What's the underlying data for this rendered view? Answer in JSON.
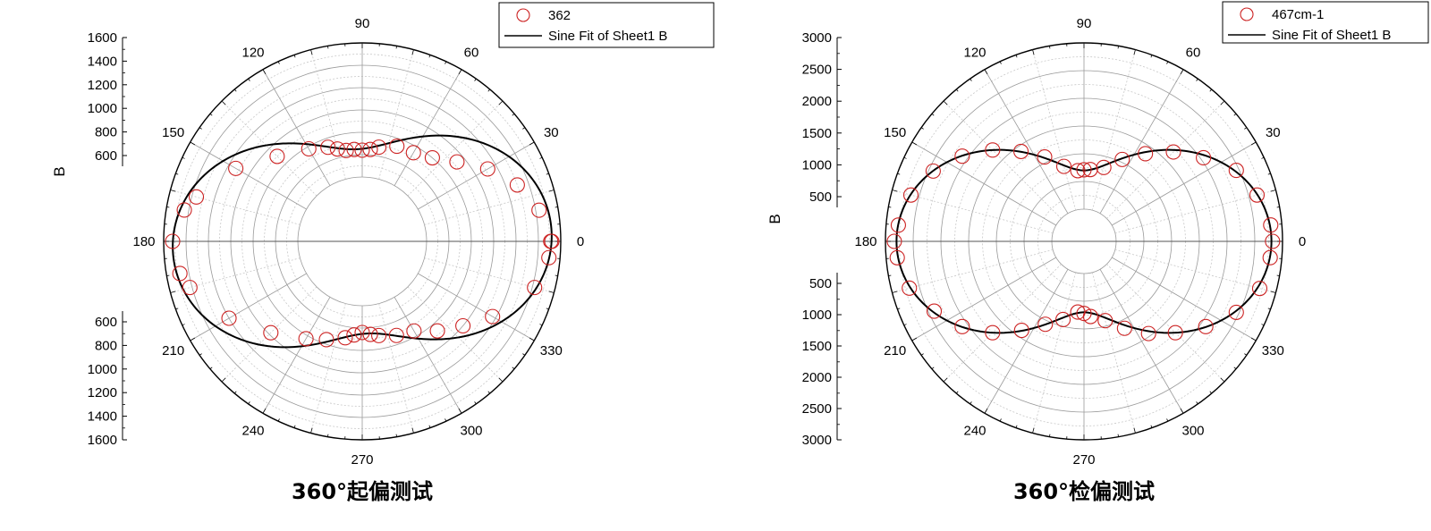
{
  "chart_data": [
    {
      "type": "scatter",
      "coordinate_system": "polar",
      "title": "",
      "caption": "360°起偏测试",
      "rlabel": "B",
      "rlim": [
        400,
        1600
      ],
      "r_ticks": [
        600,
        800,
        1000,
        1200,
        1400,
        1600
      ],
      "angle_ticks": [
        0,
        30,
        60,
        90,
        120,
        150,
        180,
        210,
        240,
        270,
        300,
        330
      ],
      "grid": true,
      "legend": {
        "position": "top-right",
        "entries": [
          "362",
          "Sine Fit of Sheet1 B"
        ]
      },
      "colors": {
        "points": "#cc2222",
        "fit": "#000000"
      },
      "series": [
        {
          "name": "362",
          "style": "open-circle",
          "theta": [
            0,
            0,
            10,
            20,
            30,
            40,
            50,
            60,
            70,
            80,
            85,
            90,
            95,
            100,
            105,
            110,
            120,
            135,
            150,
            165,
            170,
            180,
            190,
            195,
            210,
            225,
            240,
            250,
            260,
            265,
            270,
            275,
            280,
            290,
            300,
            310,
            320,
            330,
            345,
            355
          ],
          "r": [
            1520,
            1510,
            1430,
            1300,
            1120,
            930,
            800,
            740,
            730,
            680,
            650,
            640,
            650,
            650,
            680,
            720,
            780,
            900,
            1130,
            1360,
            1440,
            1520,
            1480,
            1420,
            1200,
            980,
            830,
            760,
            700,
            665,
            640,
            660,
            680,
            720,
            750,
            870,
            1000,
            1170,
            1420,
            1500
          ]
        },
        {
          "name": "Sine Fit of Sheet1 B",
          "style": "line",
          "model": "r = 1085 + 435*cos(2*(theta - 3))"
        }
      ]
    },
    {
      "type": "scatter",
      "coordinate_system": "polar",
      "title": "",
      "caption": "360°检偏测试",
      "rlabel": "B",
      "rlim": [
        0,
        3000
      ],
      "r_ticks": [
        500,
        1000,
        1500,
        2000,
        2500,
        3000
      ],
      "angle_ticks": [
        0,
        30,
        60,
        90,
        120,
        150,
        180,
        210,
        240,
        270,
        300,
        330
      ],
      "grid": true,
      "legend": {
        "position": "top-right",
        "entries": [
          "467cm-1",
          "Sine Fit of Sheet1 B"
        ]
      },
      "colors": {
        "points": "#cc2222",
        "fit": "#000000"
      },
      "series": [
        {
          "name": "467cm-1",
          "style": "open-circle",
          "theta": [
            0,
            5,
            15,
            25,
            35,
            45,
            55,
            65,
            75,
            85,
            90,
            95,
            105,
            115,
            125,
            135,
            145,
            155,
            165,
            175,
            180,
            185,
            195,
            205,
            215,
            225,
            235,
            245,
            255,
            265,
            270,
            275,
            285,
            295,
            305,
            315,
            325,
            335,
            345,
            355
          ],
          "r": [
            2820,
            2800,
            2650,
            2450,
            2050,
            1700,
            1350,
            1050,
            800,
            720,
            710,
            700,
            820,
            1100,
            1400,
            1750,
            2100,
            2420,
            2650,
            2780,
            2840,
            2800,
            2680,
            2400,
            2100,
            1750,
            1380,
            1070,
            880,
            700,
            720,
            780,
            900,
            1150,
            1450,
            1750,
            2100,
            2450,
            2700,
            2790
          ]
        },
        {
          "name": "Sine Fit of Sheet1 B",
          "style": "line",
          "model": "r = 1750 + 1050*cos(2*theta)"
        }
      ]
    }
  ]
}
